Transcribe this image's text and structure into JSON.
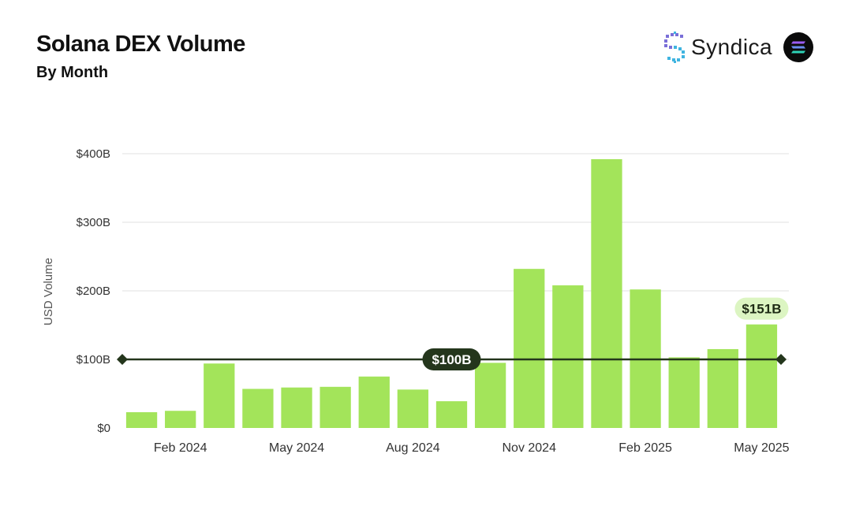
{
  "header": {
    "title": "Solana DEX Volume",
    "subtitle": "By Month",
    "brand_name": "Syndica",
    "brand_icon": "syndica-logo-icon",
    "network_icon": "solana-logo-icon"
  },
  "chart_data": {
    "type": "bar",
    "title": "Solana DEX Volume",
    "subtitle": "By Month",
    "xlabel": "",
    "ylabel": "USD Volume",
    "categories": [
      "Jan 2024",
      "Feb 2024",
      "Mar 2024",
      "Apr 2024",
      "May 2024",
      "Jun 2024",
      "Jul 2024",
      "Aug 2024",
      "Sep 2024",
      "Oct 2024",
      "Nov 2024",
      "Dec 2024",
      "Jan 2025",
      "Feb 2025",
      "Mar 2025",
      "Apr 2025",
      "May 2025"
    ],
    "values": [
      23,
      25,
      94,
      57,
      59,
      60,
      75,
      56,
      39,
      95,
      232,
      208,
      392,
      202,
      103,
      115,
      151
    ],
    "unit": "USD billions",
    "ylim": [
      0,
      400
    ],
    "y_ticks": [
      0,
      100,
      200,
      300,
      400
    ],
    "y_tick_labels": [
      "$0",
      "$100B",
      "$200B",
      "$300B",
      "$400B"
    ],
    "x_tick_labels": [
      {
        "category": "Feb 2024",
        "label": "Feb 2024"
      },
      {
        "category": "May 2024",
        "label": "May 2024"
      },
      {
        "category": "Aug 2024",
        "label": "Aug 2024"
      },
      {
        "category": "Nov 2024",
        "label": "Nov 2024"
      },
      {
        "category": "Feb 2025",
        "label": "Feb 2025"
      },
      {
        "category": "May 2025",
        "label": "May 2025"
      }
    ],
    "grid": true,
    "legend": "none",
    "reference_line": {
      "value": 100,
      "label": "$100B",
      "color": "#24361c"
    },
    "annotations": [
      {
        "category": "May 2025",
        "value": 151,
        "label": "$151B"
      }
    ],
    "colors": {
      "bar": "#a3e45a",
      "reference_line": "#24361c",
      "grid": "#e6e6e6",
      "annotation_bg": "#dcf5c2"
    }
  }
}
